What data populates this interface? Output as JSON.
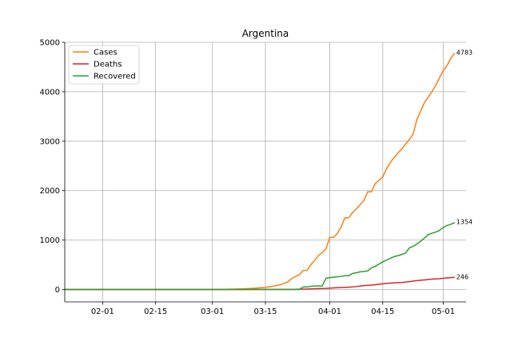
{
  "chart_data": {
    "type": "line",
    "title": "Argentina",
    "xlabel": "",
    "ylabel": "",
    "x_axis": {
      "type": "date",
      "range": [
        "2020-01-22",
        "2020-05-07"
      ],
      "tick_labels": [
        "02-01",
        "02-15",
        "03-01",
        "03-15",
        "04-01",
        "04-15",
        "05-01"
      ],
      "tick_dates": [
        "2020-02-01",
        "2020-02-15",
        "2020-03-01",
        "2020-03-15",
        "2020-04-01",
        "2020-04-15",
        "2020-05-01"
      ]
    },
    "y_axis": {
      "range": [
        -250,
        5000
      ],
      "ticks": [
        0,
        1000,
        2000,
        3000,
        4000,
        5000
      ],
      "tick_labels": [
        "0",
        "1000",
        "2000",
        "3000",
        "4000",
        "5000"
      ]
    },
    "grid": true,
    "legend_position": "top-left",
    "series": [
      {
        "name": "Cases",
        "color": "#ff7f0e",
        "end_label": "4783",
        "points": [
          [
            "2020-01-22",
            0
          ],
          [
            "2020-03-02",
            0
          ],
          [
            "2020-03-03",
            1
          ],
          [
            "2020-03-07",
            8
          ],
          [
            "2020-03-10",
            17
          ],
          [
            "2020-03-13",
            31
          ],
          [
            "2020-03-15",
            45
          ],
          [
            "2020-03-17",
            65
          ],
          [
            "2020-03-19",
            97
          ],
          [
            "2020-03-20",
            128
          ],
          [
            "2020-03-21",
            158
          ],
          [
            "2020-03-22",
            225
          ],
          [
            "2020-03-23",
            266
          ],
          [
            "2020-03-24",
            301
          ],
          [
            "2020-03-25",
            387
          ],
          [
            "2020-03-26",
            387
          ],
          [
            "2020-03-27",
            502
          ],
          [
            "2020-03-28",
            589
          ],
          [
            "2020-03-29",
            690
          ],
          [
            "2020-03-30",
            745
          ],
          [
            "2020-03-31",
            820
          ],
          [
            "2020-04-01",
            1054
          ],
          [
            "2020-04-02",
            1054
          ],
          [
            "2020-04-03",
            1133
          ],
          [
            "2020-04-04",
            1265
          ],
          [
            "2020-04-05",
            1451
          ],
          [
            "2020-04-06",
            1451
          ],
          [
            "2020-04-07",
            1554
          ],
          [
            "2020-04-08",
            1628
          ],
          [
            "2020-04-09",
            1715
          ],
          [
            "2020-04-10",
            1795
          ],
          [
            "2020-04-11",
            1975
          ],
          [
            "2020-04-12",
            1975
          ],
          [
            "2020-04-13",
            2142
          ],
          [
            "2020-04-14",
            2208
          ],
          [
            "2020-04-15",
            2277
          ],
          [
            "2020-04-16",
            2443
          ],
          [
            "2020-04-17",
            2571
          ],
          [
            "2020-04-18",
            2669
          ],
          [
            "2020-04-19",
            2758
          ],
          [
            "2020-04-20",
            2839
          ],
          [
            "2020-04-21",
            2941
          ],
          [
            "2020-04-22",
            3031
          ],
          [
            "2020-04-23",
            3144
          ],
          [
            "2020-04-24",
            3435
          ],
          [
            "2020-04-25",
            3607
          ],
          [
            "2020-04-26",
            3780
          ],
          [
            "2020-04-27",
            3892
          ],
          [
            "2020-04-28",
            4003
          ],
          [
            "2020-04-29",
            4127
          ],
          [
            "2020-04-30",
            4285
          ],
          [
            "2020-05-01",
            4428
          ],
          [
            "2020-05-02",
            4532
          ],
          [
            "2020-05-03",
            4681
          ],
          [
            "2020-05-04",
            4783
          ]
        ]
      },
      {
        "name": "Deaths",
        "color": "#d62728",
        "end_label": "246",
        "points": [
          [
            "2020-01-22",
            0
          ],
          [
            "2020-03-07",
            0
          ],
          [
            "2020-03-08",
            1
          ],
          [
            "2020-03-15",
            2
          ],
          [
            "2020-03-20",
            3
          ],
          [
            "2020-03-23",
            4
          ],
          [
            "2020-03-25",
            8
          ],
          [
            "2020-03-27",
            12
          ],
          [
            "2020-03-29",
            18
          ],
          [
            "2020-03-31",
            23
          ],
          [
            "2020-04-02",
            32
          ],
          [
            "2020-04-04",
            40
          ],
          [
            "2020-04-06",
            46
          ],
          [
            "2020-04-08",
            60
          ],
          [
            "2020-04-10",
            79
          ],
          [
            "2020-04-12",
            90
          ],
          [
            "2020-04-14",
            105
          ],
          [
            "2020-04-16",
            123
          ],
          [
            "2020-04-18",
            136
          ],
          [
            "2020-04-20",
            142
          ],
          [
            "2020-04-22",
            160
          ],
          [
            "2020-04-24",
            181
          ],
          [
            "2020-04-26",
            195
          ],
          [
            "2020-04-28",
            210
          ],
          [
            "2020-04-30",
            218
          ],
          [
            "2020-05-02",
            235
          ],
          [
            "2020-05-04",
            246
          ]
        ]
      },
      {
        "name": "Recovered",
        "color": "#2ca02c",
        "end_label": "1354",
        "points": [
          [
            "2020-01-22",
            0
          ],
          [
            "2020-03-24",
            0
          ],
          [
            "2020-03-25",
            52
          ],
          [
            "2020-03-26",
            52
          ],
          [
            "2020-03-27",
            63
          ],
          [
            "2020-03-28",
            72
          ],
          [
            "2020-03-29",
            72
          ],
          [
            "2020-03-30",
            72
          ],
          [
            "2020-03-31",
            228
          ],
          [
            "2020-04-01",
            240
          ],
          [
            "2020-04-02",
            248
          ],
          [
            "2020-04-03",
            256
          ],
          [
            "2020-04-04",
            266
          ],
          [
            "2020-04-05",
            279
          ],
          [
            "2020-04-06",
            280
          ],
          [
            "2020-04-07",
            325
          ],
          [
            "2020-04-08",
            338
          ],
          [
            "2020-04-09",
            358
          ],
          [
            "2020-04-10",
            365
          ],
          [
            "2020-04-11",
            375
          ],
          [
            "2020-04-12",
            440
          ],
          [
            "2020-04-13",
            468
          ],
          [
            "2020-04-14",
            515
          ],
          [
            "2020-04-15",
            559
          ],
          [
            "2020-04-16",
            596
          ],
          [
            "2020-04-17",
            632
          ],
          [
            "2020-04-18",
            665
          ],
          [
            "2020-04-19",
            685
          ],
          [
            "2020-04-20",
            709
          ],
          [
            "2020-04-21",
            737
          ],
          [
            "2020-04-22",
            840
          ],
          [
            "2020-04-23",
            873
          ],
          [
            "2020-04-24",
            919
          ],
          [
            "2020-04-25",
            976
          ],
          [
            "2020-04-26",
            1040
          ],
          [
            "2020-04-27",
            1107
          ],
          [
            "2020-04-28",
            1140
          ],
          [
            "2020-04-29",
            1162
          ],
          [
            "2020-04-30",
            1197
          ],
          [
            "2020-05-01",
            1256
          ],
          [
            "2020-05-02",
            1296
          ],
          [
            "2020-05-03",
            1320
          ],
          [
            "2020-05-04",
            1354
          ]
        ]
      }
    ]
  }
}
